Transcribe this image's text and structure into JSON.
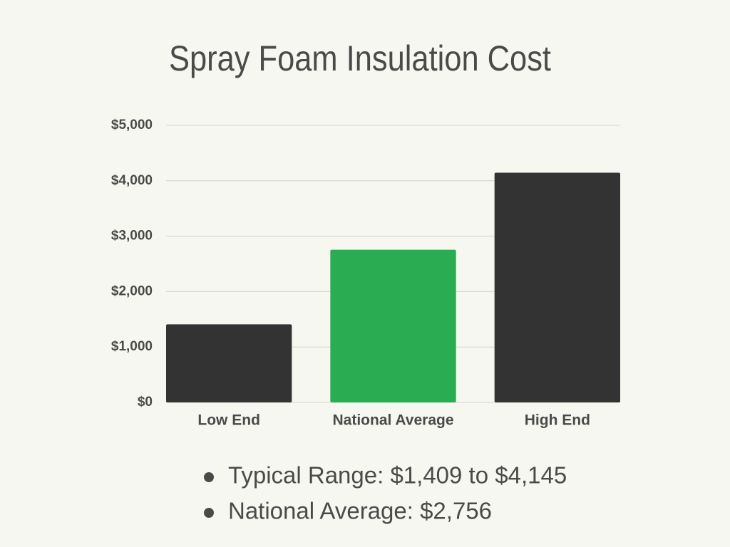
{
  "chart_data": {
    "type": "bar",
    "title": "Spray Foam Insulation Cost",
    "categories": [
      "Low End",
      "National Average",
      "High End"
    ],
    "values": [
      1409,
      2756,
      4145
    ],
    "colors": [
      "#333333",
      "#2aad52",
      "#333333"
    ],
    "ylim": [
      0,
      5000
    ],
    "yticks": [
      {
        "value": 0,
        "label": "$0"
      },
      {
        "value": 1000,
        "label": "$1,000"
      },
      {
        "value": 2000,
        "label": "$2,000"
      },
      {
        "value": 3000,
        "label": "$3,000"
      },
      {
        "value": 4000,
        "label": "$4,000"
      },
      {
        "value": 5000,
        "label": "$5,000"
      }
    ],
    "grid": true,
    "notes": [
      "Typical Range: $1,409 to $4,145",
      "National Average: $2,756"
    ]
  }
}
